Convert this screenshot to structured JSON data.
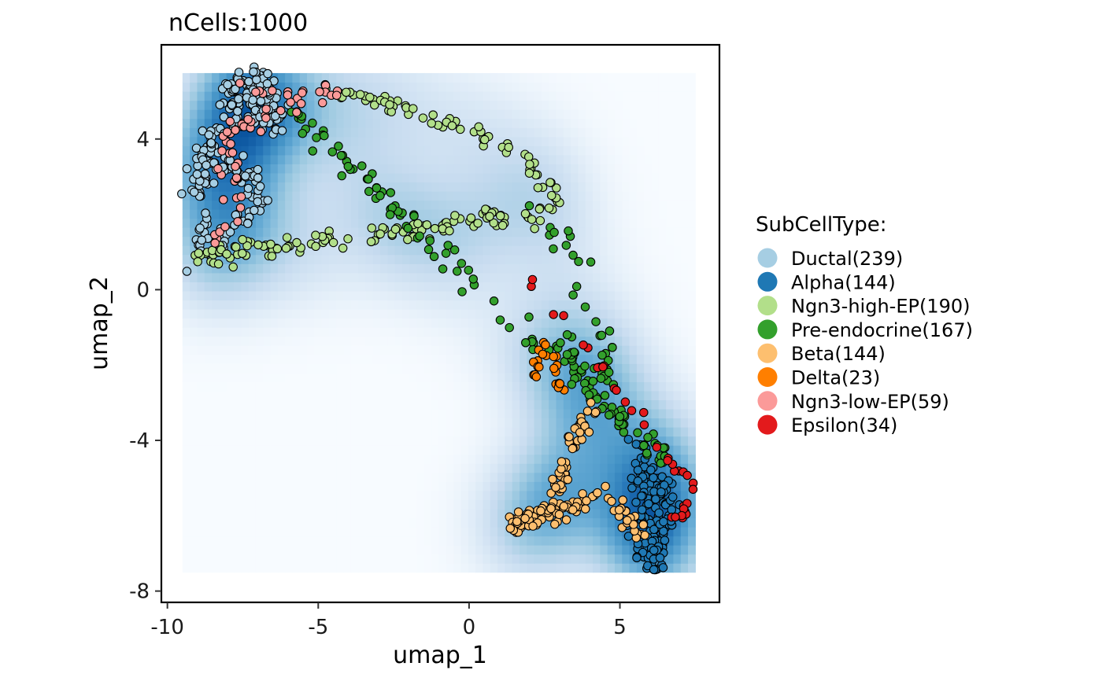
{
  "chart_data": {
    "type": "scatter",
    "title": "nCells:1000",
    "xlabel": "umap_1",
    "ylabel": "umap_2",
    "xlim": [
      -10.2,
      8.3
    ],
    "ylim": [
      -8.3,
      6.5
    ],
    "x_ticks": [
      -10,
      -5,
      0,
      5
    ],
    "y_ticks": [
      -8,
      -4,
      0,
      4
    ],
    "x_tick_labels": [
      "-10",
      "-5",
      "0",
      "5"
    ],
    "y_tick_labels": [
      "-8",
      "-4",
      "0",
      "4"
    ],
    "grid": false,
    "background": "density heatmap (Blues) of cell density",
    "legend": {
      "title": "SubCellType:",
      "position": "right",
      "items": [
        {
          "label": "Ductal(239)",
          "color": "#a6cee3"
        },
        {
          "label": "Alpha(144)",
          "color": "#1f78b4"
        },
        {
          "label": "Ngn3-high-EP(190)",
          "color": "#b2df8a"
        },
        {
          "label": "Pre-endocrine(167)",
          "color": "#33a02c"
        },
        {
          "label": "Beta(144)",
          "color": "#fdbf6f"
        },
        {
          "label": "Delta(23)",
          "color": "#ff7f00"
        },
        {
          "label": "Ngn3-low-EP(59)",
          "color": "#fb9a99"
        },
        {
          "label": "Epsilon(34)",
          "color": "#e31a1c"
        }
      ]
    },
    "series": [
      {
        "name": "Ductal(239)",
        "color": "#a6cee3",
        "path": [
          [
            -9.1,
            1.0
          ],
          [
            -8.8,
            1.5
          ],
          [
            -8.3,
            1.7
          ],
          [
            -7.8,
            1.6
          ],
          [
            -7.3,
            2.0
          ],
          [
            -7.0,
            2.6
          ],
          [
            -7.4,
            3.1
          ],
          [
            -8.1,
            3.4
          ],
          [
            -8.7,
            3.1
          ],
          [
            -9.1,
            2.6
          ],
          [
            -8.7,
            3.6
          ],
          [
            -8.2,
            4.2
          ],
          [
            -7.6,
            4.5
          ],
          [
            -6.9,
            4.7
          ],
          [
            -6.4,
            4.4
          ],
          [
            -6.2,
            4.9
          ],
          [
            -6.7,
            5.3
          ],
          [
            -7.2,
            5.0
          ],
          [
            -7.6,
            5.3
          ],
          [
            -8.0,
            5.1
          ],
          [
            -7.1,
            5.6
          ],
          [
            -6.6,
            5.5
          ]
        ],
        "n": 239,
        "spread": 0.22
      },
      {
        "name": "Alpha(144)",
        "color": "#1f78b4",
        "path": [
          [
            5.6,
            -4.1
          ],
          [
            5.9,
            -4.6
          ],
          [
            5.7,
            -5.1
          ],
          [
            6.0,
            -5.6
          ],
          [
            5.7,
            -6.1
          ],
          [
            6.2,
            -6.5
          ],
          [
            5.8,
            -6.9
          ],
          [
            6.0,
            -7.3
          ],
          [
            6.4,
            -6.6
          ],
          [
            6.5,
            -5.7
          ],
          [
            6.3,
            -5.0
          ]
        ],
        "n": 144,
        "spread": 0.2
      },
      {
        "name": "Ngn3-high-EP(190)",
        "color": "#b2df8a",
        "path": [
          [
            -4.6,
            5.3
          ],
          [
            -3.5,
            5.0
          ],
          [
            -2.5,
            4.9
          ],
          [
            -1.5,
            4.7
          ],
          [
            -0.5,
            4.4
          ],
          [
            0.5,
            4.0
          ],
          [
            1.5,
            3.6
          ],
          [
            2.3,
            3.1
          ],
          [
            2.8,
            2.5
          ],
          [
            3.0,
            2.1
          ],
          [
            -9.2,
            0.9
          ]
        ],
        "n": 190,
        "spread": 0.14
      },
      {
        "name": "Pre-endocrine(167)",
        "color": "#33a02c",
        "path": [
          [
            2.0,
            2.2
          ],
          [
            2.7,
            1.6
          ],
          [
            3.3,
            1.2
          ],
          [
            3.8,
            0.6
          ],
          [
            3.5,
            -0.3
          ],
          [
            4.0,
            -0.6
          ],
          [
            4.4,
            -1.0
          ],
          [
            4.6,
            -1.6
          ],
          [
            4.4,
            -2.2
          ],
          [
            4.7,
            -2.7
          ],
          [
            4.3,
            -3.0
          ],
          [
            3.0,
            -1.4
          ],
          [
            6.5,
            -4.6
          ],
          [
            -6.0,
            4.8
          ]
        ],
        "n": 167,
        "spread": 0.17
      },
      {
        "name": "Beta(144)",
        "color": "#fdbf6f",
        "path": [
          [
            4.2,
            -3.2
          ],
          [
            3.7,
            -3.6
          ],
          [
            3.4,
            -4.1
          ],
          [
            3.3,
            -4.6
          ],
          [
            3.0,
            -5.1
          ],
          [
            2.8,
            -5.5
          ],
          [
            2.5,
            -5.8
          ],
          [
            2.0,
            -6.0
          ],
          [
            1.5,
            -6.3
          ],
          [
            1.3,
            -6.4
          ],
          [
            4.5,
            -5.4
          ],
          [
            5.9,
            -6.6
          ]
        ],
        "n": 144,
        "spread": 0.13
      },
      {
        "name": "Delta(23)",
        "color": "#ff7f00",
        "path": [
          [
            2.0,
            -2.6
          ],
          [
            2.1,
            -2.2
          ],
          [
            2.4,
            -2.1
          ],
          [
            2.3,
            -1.6
          ],
          [
            2.6,
            -1.3
          ],
          [
            3.1,
            -2.9
          ]
        ],
        "n": 23,
        "spread": 0.1
      },
      {
        "name": "Ngn3-low-EP(59)",
        "color": "#fb9a99",
        "path": [
          [
            -7.6,
            5.5
          ],
          [
            -6.8,
            5.3
          ],
          [
            -6.1,
            5.1
          ],
          [
            -5.4,
            5.0
          ],
          [
            -4.9,
            5.1
          ],
          [
            -4.5,
            5.2
          ],
          [
            -6.9,
            4.9
          ],
          [
            -7.8,
            4.2
          ],
          [
            -7.6,
            1.8
          ],
          [
            -8.5,
            1.3
          ],
          [
            -8.1,
            4.3
          ],
          [
            -6.6,
            4.5
          ]
        ],
        "n": 59,
        "spread": 0.13
      },
      {
        "name": "Epsilon(34)",
        "color": "#e31a1c",
        "path": [
          [
            1.7,
            0.5
          ],
          [
            2.1,
            0.3
          ],
          [
            6.9,
            -4.7
          ],
          [
            7.3,
            -4.9
          ],
          [
            7.4,
            -5.2
          ],
          [
            7.2,
            -5.6
          ],
          [
            7.1,
            -6.0
          ],
          [
            6.8,
            -6.1
          ]
        ],
        "n": 34,
        "spread": 0.08
      }
    ]
  }
}
